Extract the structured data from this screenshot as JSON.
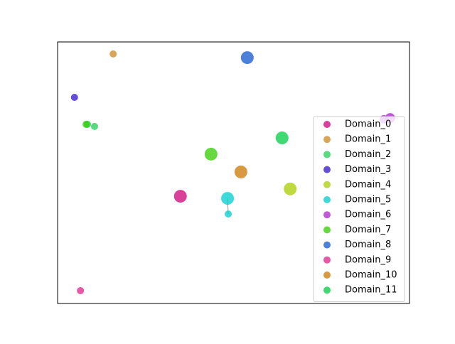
{
  "chart_data": {
    "type": "scatter",
    "xlim": [
      0,
      100
    ],
    "ylim": [
      0,
      100
    ],
    "legend": "upper right",
    "series": [
      {
        "name": "Domain_0",
        "color": "#cc0077",
        "x": [
          34.9
        ],
        "values": [
          41.0
        ],
        "sizes": [
          9
        ]
      },
      {
        "name": "Domain_1",
        "color": "#cc8822",
        "x": [
          15.8
        ],
        "values": [
          95.4
        ],
        "sizes": [
          5
        ]
      },
      {
        "name": "Domain_2",
        "color": "#22cc55",
        "x": [
          10.5,
          8.5
        ],
        "values": [
          67.7,
          68.5
        ],
        "sizes": [
          5,
          5
        ]
      },
      {
        "name": "Domain_3",
        "color": "#3311cc",
        "x": [
          4.8
        ],
        "values": [
          78.8
        ],
        "sizes": [
          5
        ]
      },
      {
        "name": "Domain_4",
        "color": "#aacc00",
        "x": [
          66.1
        ],
        "values": [
          43.8
        ],
        "sizes": [
          9
        ]
      },
      {
        "name": "Domain_5",
        "color": "#00cccc",
        "x": [
          48.3,
          48.5
        ],
        "values": [
          40.2,
          34.2
        ],
        "sizes": [
          9,
          5
        ]
      },
      {
        "name": "Domain_6",
        "color": "#aa22cc",
        "x": [
          94.5,
          92.7
        ],
        "values": [
          70.9,
          70.4
        ],
        "sizes": [
          7,
          6
        ]
      },
      {
        "name": "Domain_7",
        "color": "#33cc00",
        "x": [
          43.6,
          8.1
        ],
        "values": [
          57.1,
          68.5
        ],
        "sizes": [
          9,
          5
        ]
      },
      {
        "name": "Domain_8",
        "color": "#1155cc",
        "x": [
          53.9
        ],
        "values": [
          94.0
        ],
        "sizes": [
          9
        ]
      },
      {
        "name": "Domain_9",
        "color": "#dd2288",
        "x": [
          6.5
        ],
        "values": [
          4.9
        ],
        "sizes": [
          5
        ]
      },
      {
        "name": "Domain_10",
        "color": "#cc7700",
        "x": [
          52.1
        ],
        "values": [
          50.3
        ],
        "sizes": [
          9
        ]
      },
      {
        "name": "Domain_11",
        "color": "#00cc44",
        "x": [
          63.8
        ],
        "values": [
          63.3
        ],
        "sizes": [
          9
        ]
      }
    ]
  }
}
